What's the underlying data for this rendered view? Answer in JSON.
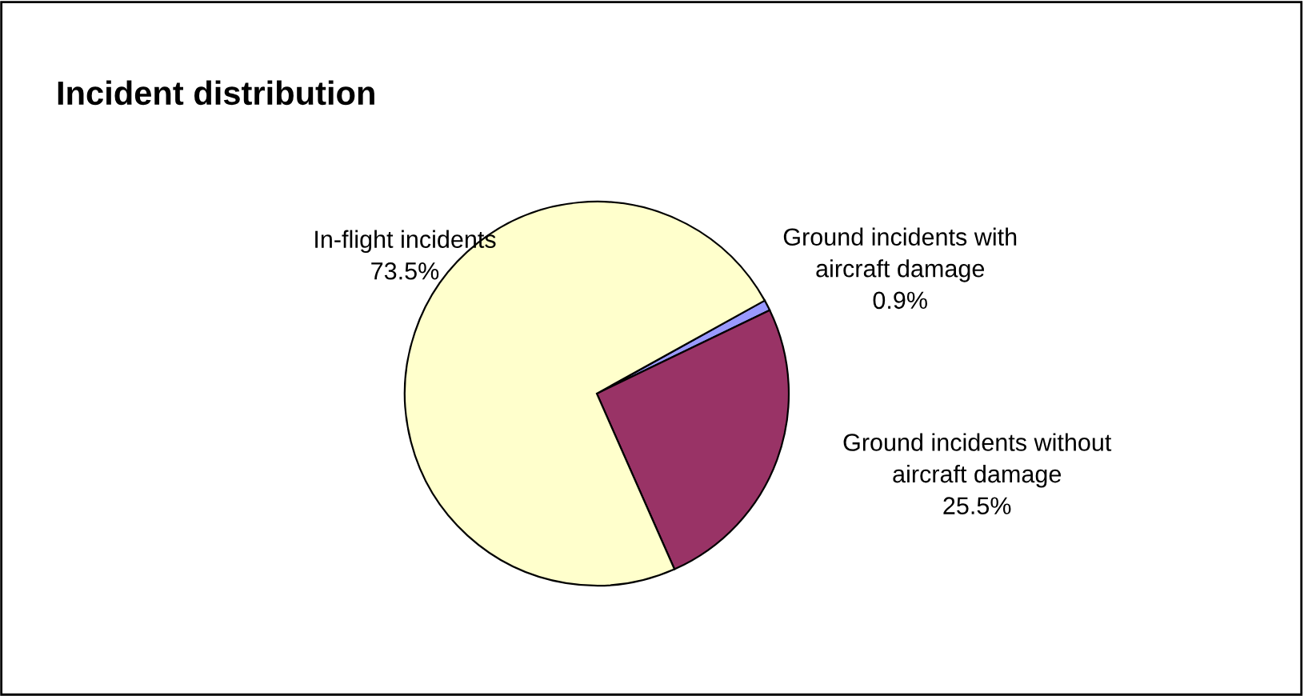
{
  "chart_data": {
    "type": "pie",
    "title": "Incident distribution",
    "categories": [
      "Ground incidents with\naircraft damage",
      "Ground incidents without\naircraft damage",
      "In-flight incidents"
    ],
    "values": [
      0.9,
      25.5,
      73.5
    ],
    "colors": [
      "#9999ff",
      "#993366",
      "#ffffcc"
    ],
    "value_labels": [
      "0.9%",
      "25.5%",
      "73.5%"
    ],
    "legend": false
  }
}
